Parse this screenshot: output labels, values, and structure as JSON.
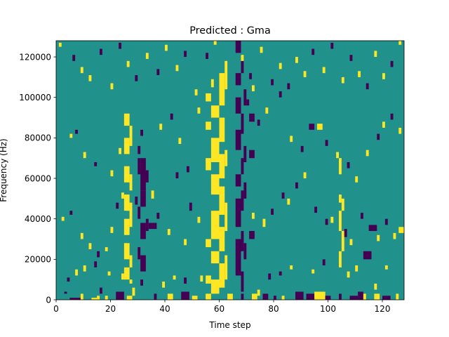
{
  "chart_data": {
    "type": "heatmap",
    "title": "Predicted : Gma",
    "xlabel": "Time step",
    "ylabel": "Frequency (Hz)",
    "xlim": [
      0,
      128
    ],
    "ylim": [
      0,
      128000
    ],
    "x_ticks": [
      0,
      20,
      40,
      60,
      80,
      100,
      120
    ],
    "x_tick_labels": [
      "0",
      "20",
      "40",
      "60",
      "80",
      "100",
      "120"
    ],
    "y_ticks": [
      0,
      20000,
      40000,
      60000,
      80000,
      100000,
      120000
    ],
    "y_tick_labels": [
      "0",
      "20000",
      "40000",
      "60000",
      "80000",
      "100000",
      "120000"
    ],
    "grid": false,
    "colormap": "viridis",
    "colors": {
      "low": "#440154",
      "mid": "#21918c",
      "high": "#fde725"
    },
    "background_value": 0,
    "cell_value_legend": {
      "-1": "low",
      "0": "mid",
      "1": "high"
    },
    "cell_width": 1,
    "cell_height": 1000,
    "cells": [
      [
        5,
        0,
        4,
        1,
        -1
      ],
      [
        3,
        3,
        1,
        1,
        -1
      ],
      [
        9,
        0,
        1,
        3,
        1
      ],
      [
        13,
        0,
        2,
        1,
        1
      ],
      [
        15,
        0,
        1,
        2,
        1
      ],
      [
        16,
        3,
        1,
        3,
        -1
      ],
      [
        18,
        0,
        1,
        2,
        1
      ],
      [
        22,
        0,
        3,
        4,
        -1
      ],
      [
        26,
        0,
        2,
        2,
        1
      ],
      [
        28,
        2,
        1,
        4,
        1
      ],
      [
        36,
        0,
        1,
        3,
        -1
      ],
      [
        41,
        0,
        2,
        3,
        1
      ],
      [
        46,
        0,
        3,
        4,
        -1
      ],
      [
        50,
        0,
        2,
        2,
        1
      ],
      [
        55,
        0,
        2,
        3,
        1
      ],
      [
        57,
        3,
        3,
        2,
        1
      ],
      [
        63,
        0,
        2,
        3,
        1
      ],
      [
        68,
        0,
        1,
        3,
        -1
      ],
      [
        72,
        0,
        2,
        3,
        1
      ],
      [
        74,
        2,
        1,
        3,
        1
      ],
      [
        76,
        0,
        2,
        3,
        -1
      ],
      [
        80,
        0,
        1,
        2,
        -1
      ],
      [
        83,
        0,
        1,
        2,
        1
      ],
      [
        88,
        0,
        3,
        4,
        -1
      ],
      [
        92,
        0,
        3,
        3,
        -1
      ],
      [
        95,
        0,
        4,
        4,
        1
      ],
      [
        99,
        0,
        2,
        2,
        -1
      ],
      [
        104,
        0,
        1,
        3,
        -1
      ],
      [
        108,
        0,
        3,
        2,
        -1
      ],
      [
        111,
        0,
        2,
        4,
        -1
      ],
      [
        113,
        0,
        1,
        3,
        1
      ],
      [
        117,
        0,
        2,
        3,
        1
      ],
      [
        120,
        0,
        3,
        2,
        -1
      ],
      [
        117,
        5,
        1,
        3,
        1
      ],
      [
        125,
        0,
        1,
        3,
        1
      ],
      [
        4,
        9,
        1,
        2,
        -1
      ],
      [
        7,
        12,
        1,
        3,
        1
      ],
      [
        10,
        14,
        1,
        3,
        1
      ],
      [
        14,
        16,
        1,
        3,
        -1
      ],
      [
        19,
        12,
        1,
        2,
        1
      ],
      [
        24,
        10,
        1,
        3,
        1
      ],
      [
        27,
        8,
        1,
        2,
        1
      ],
      [
        31,
        7,
        1,
        3,
        -1
      ],
      [
        39,
        6,
        1,
        3,
        1
      ],
      [
        43,
        10,
        1,
        2,
        1
      ],
      [
        47,
        8,
        1,
        3,
        -1
      ],
      [
        53,
        9,
        1,
        3,
        1
      ],
      [
        78,
        10,
        1,
        3,
        -1
      ],
      [
        82,
        12,
        1,
        2,
        -1
      ],
      [
        86,
        15,
        1,
        2,
        1
      ],
      [
        94,
        13,
        1,
        2,
        1
      ],
      [
        98,
        17,
        1,
        3,
        -1
      ],
      [
        107,
        11,
        1,
        3,
        1
      ],
      [
        110,
        14,
        1,
        3,
        1
      ],
      [
        113,
        20,
        3,
        4,
        -1
      ],
      [
        121,
        15,
        1,
        2,
        1
      ],
      [
        2,
        39,
        1,
        2,
        1
      ],
      [
        5,
        42,
        1,
        2,
        -1
      ],
      [
        9,
        30,
        1,
        3,
        1
      ],
      [
        12,
        25,
        1,
        3,
        1
      ],
      [
        15,
        21,
        1,
        3,
        -1
      ],
      [
        18,
        24,
        1,
        2,
        1
      ],
      [
        20,
        33,
        1,
        3,
        1
      ],
      [
        22,
        45,
        1,
        3,
        -1
      ],
      [
        24,
        50,
        1,
        3,
        1
      ],
      [
        26,
        44,
        1,
        4,
        1
      ],
      [
        29,
        47,
        1,
        4,
        -1
      ],
      [
        32,
        58,
        1,
        5,
        -1
      ],
      [
        35,
        50,
        1,
        4,
        1
      ],
      [
        37,
        40,
        1,
        3,
        -1
      ],
      [
        41,
        32,
        1,
        3,
        1
      ],
      [
        44,
        60,
        1,
        3,
        -1
      ],
      [
        47,
        27,
        1,
        3,
        1
      ],
      [
        49,
        44,
        1,
        4,
        -1
      ],
      [
        52,
        38,
        1,
        3,
        1
      ],
      [
        72,
        40,
        1,
        3,
        1
      ],
      [
        76,
        36,
        1,
        4,
        1
      ],
      [
        79,
        42,
        1,
        3,
        -1
      ],
      [
        83,
        50,
        1,
        3,
        -1
      ],
      [
        85,
        47,
        1,
        3,
        1
      ],
      [
        88,
        55,
        1,
        3,
        -1
      ],
      [
        91,
        60,
        1,
        3,
        1
      ],
      [
        95,
        43,
        1,
        3,
        -1
      ],
      [
        101,
        38,
        1,
        3,
        1
      ],
      [
        106,
        31,
        1,
        4,
        -1
      ],
      [
        108,
        27,
        1,
        3,
        1
      ],
      [
        112,
        40,
        1,
        3,
        -1
      ],
      [
        115,
        34,
        3,
        3,
        -1
      ],
      [
        118,
        29,
        1,
        3,
        1
      ],
      [
        121,
        37,
        1,
        3,
        -1
      ],
      [
        124,
        30,
        1,
        3,
        1
      ],
      [
        126,
        33,
        2,
        3,
        1
      ],
      [
        99,
        37,
        1,
        3,
        -1
      ],
      [
        5,
        80,
        1,
        2,
        1
      ],
      [
        7,
        82,
        1,
        2,
        -1
      ],
      [
        10,
        70,
        1,
        3,
        1
      ],
      [
        14,
        66,
        1,
        2,
        -1
      ],
      [
        20,
        61,
        1,
        3,
        1
      ],
      [
        23,
        72,
        1,
        3,
        1
      ],
      [
        31,
        81,
        1,
        3,
        -1
      ],
      [
        38,
        84,
        1,
        3,
        1
      ],
      [
        42,
        89,
        1,
        3,
        -1
      ],
      [
        45,
        77,
        1,
        3,
        1
      ],
      [
        48,
        63,
        1,
        3,
        -1
      ],
      [
        52,
        92,
        1,
        3,
        1
      ],
      [
        57,
        105,
        1,
        4,
        1
      ],
      [
        70,
        96,
        1,
        3,
        -1
      ],
      [
        72,
        103,
        1,
        3,
        1
      ],
      [
        74,
        86,
        1,
        3,
        -1
      ],
      [
        77,
        92,
        1,
        3,
        1
      ],
      [
        82,
        100,
        1,
        3,
        -1
      ],
      [
        86,
        78,
        1,
        3,
        1
      ],
      [
        90,
        73,
        1,
        3,
        -1
      ],
      [
        93,
        84,
        2,
        3,
        -1
      ],
      [
        96,
        84,
        2,
        3,
        1
      ],
      [
        99,
        76,
        1,
        3,
        -1
      ],
      [
        103,
        70,
        1,
        3,
        1
      ],
      [
        107,
        65,
        1,
        3,
        -1
      ],
      [
        110,
        58,
        1,
        3,
        1
      ],
      [
        114,
        71,
        1,
        3,
        1
      ],
      [
        118,
        79,
        1,
        3,
        -1
      ],
      [
        120,
        85,
        1,
        3,
        1
      ],
      [
        123,
        89,
        1,
        3,
        -1
      ],
      [
        126,
        82,
        1,
        3,
        1
      ],
      [
        1,
        125,
        1,
        2,
        1
      ],
      [
        6,
        118,
        1,
        3,
        -1
      ],
      [
        9,
        112,
        1,
        3,
        1
      ],
      [
        12,
        108,
        1,
        3,
        1
      ],
      [
        16,
        121,
        1,
        3,
        -1
      ],
      [
        20,
        104,
        1,
        3,
        1
      ],
      [
        23,
        124,
        1,
        3,
        -1
      ],
      [
        26,
        115,
        1,
        3,
        1
      ],
      [
        29,
        108,
        1,
        3,
        -1
      ],
      [
        33,
        119,
        1,
        3,
        1
      ],
      [
        37,
        111,
        1,
        3,
        -1
      ],
      [
        40,
        123,
        1,
        3,
        1
      ],
      [
        44,
        113,
        1,
        3,
        1
      ],
      [
        47,
        120,
        1,
        3,
        -1
      ],
      [
        51,
        101,
        1,
        3,
        1
      ],
      [
        55,
        119,
        1,
        3,
        -1
      ],
      [
        58,
        126,
        1,
        2,
        1
      ],
      [
        68,
        118,
        1,
        3,
        1
      ],
      [
        71,
        109,
        1,
        3,
        -1
      ],
      [
        75,
        122,
        1,
        3,
        1
      ],
      [
        79,
        106,
        1,
        3,
        -1
      ],
      [
        82,
        114,
        1,
        3,
        1
      ],
      [
        85,
        104,
        1,
        3,
        -1
      ],
      [
        88,
        117,
        1,
        3,
        1
      ],
      [
        91,
        110,
        1,
        3,
        1
      ],
      [
        94,
        121,
        1,
        3,
        -1
      ],
      [
        98,
        112,
        1,
        3,
        1
      ],
      [
        101,
        124,
        1,
        3,
        -1
      ],
      [
        105,
        107,
        1,
        3,
        1
      ],
      [
        108,
        118,
        1,
        3,
        -1
      ],
      [
        111,
        110,
        1,
        3,
        1
      ],
      [
        114,
        104,
        1,
        3,
        -1
      ],
      [
        117,
        120,
        1,
        3,
        1
      ],
      [
        120,
        109,
        1,
        3,
        1
      ],
      [
        123,
        115,
        1,
        3,
        -1
      ],
      [
        126,
        126,
        1,
        2,
        1
      ]
    ],
    "bands": [
      {
        "x": 57,
        "width": 3,
        "value": 1,
        "runs": [
          [
            4,
            10
          ],
          [
            18,
            24
          ],
          [
            30,
            44
          ],
          [
            52,
            62
          ],
          [
            68,
            80
          ],
          [
            90,
            96
          ]
        ]
      },
      {
        "x": 60,
        "width": 2,
        "value": 1,
        "runs": [
          [
            6,
            18
          ],
          [
            24,
            36
          ],
          [
            42,
            56
          ],
          [
            60,
            72
          ],
          [
            78,
            90
          ],
          [
            96,
            112
          ]
        ]
      },
      {
        "x": 62,
        "width": 1,
        "value": 1,
        "runs": [
          [
            10,
            22
          ],
          [
            34,
            48
          ],
          [
            66,
            74
          ],
          [
            104,
            118
          ]
        ]
      },
      {
        "x": 55,
        "width": 2,
        "value": 1,
        "runs": [
          [
            8,
            12
          ],
          [
            26,
            30
          ],
          [
            64,
            70
          ],
          [
            84,
            88
          ],
          [
            98,
            102
          ]
        ]
      },
      {
        "x": 66,
        "width": 2,
        "value": -1,
        "runs": [
          [
            12,
            30
          ],
          [
            36,
            50
          ],
          [
            56,
            62
          ],
          [
            74,
            84
          ],
          [
            92,
            100
          ],
          [
            106,
            112
          ],
          [
            122,
            128
          ]
        ]
      },
      {
        "x": 68,
        "width": 1,
        "value": -1,
        "runs": [
          [
            4,
            14
          ],
          [
            24,
            34
          ],
          [
            44,
            54
          ],
          [
            62,
            70
          ],
          [
            82,
            92
          ],
          [
            112,
            118
          ]
        ]
      },
      {
        "x": 69,
        "width": 1,
        "value": -1,
        "runs": [
          [
            20,
            28
          ],
          [
            50,
            58
          ],
          [
            68,
            76
          ],
          [
            96,
            104
          ]
        ]
      },
      {
        "x": 71,
        "width": 2,
        "value": -1,
        "runs": [
          [
            70,
            74
          ],
          [
            30,
            34
          ],
          [
            88,
            92
          ]
        ]
      },
      {
        "x": 25,
        "width": 2,
        "value": 1,
        "runs": [
          [
            10,
            16
          ],
          [
            20,
            28
          ],
          [
            32,
            40
          ],
          [
            44,
            52
          ],
          [
            58,
            66
          ],
          [
            72,
            80
          ],
          [
            86,
            92
          ]
        ]
      },
      {
        "x": 27,
        "width": 1,
        "value": 1,
        "runs": [
          [
            16,
            22
          ],
          [
            36,
            48
          ],
          [
            54,
            62
          ],
          [
            76,
            86
          ]
        ]
      },
      {
        "x": 30,
        "width": 1,
        "value": -1,
        "runs": [
          [
            20,
            26
          ],
          [
            40,
            46
          ],
          [
            62,
            70
          ],
          [
            72,
            76
          ]
        ]
      },
      {
        "x": 31,
        "width": 2,
        "value": -1,
        "runs": [
          [
            14,
            22
          ],
          [
            30,
            38
          ],
          [
            46,
            54
          ],
          [
            54,
            70
          ]
        ]
      },
      {
        "x": 33,
        "width": 1,
        "value": -1,
        "runs": [
          [
            34,
            40
          ],
          [
            58,
            64
          ]
        ]
      },
      {
        "x": 34,
        "width": 3,
        "value": -1,
        "runs": [
          [
            35,
            38
          ]
        ]
      },
      {
        "x": 104,
        "width": 1,
        "value": 1,
        "runs": [
          [
            16,
            24
          ],
          [
            34,
            44
          ],
          [
            48,
            52
          ],
          [
            62,
            70
          ]
        ]
      },
      {
        "x": 105,
        "width": 1,
        "value": 1,
        "runs": [
          [
            24,
            34
          ],
          [
            44,
            50
          ]
        ]
      }
    ]
  }
}
